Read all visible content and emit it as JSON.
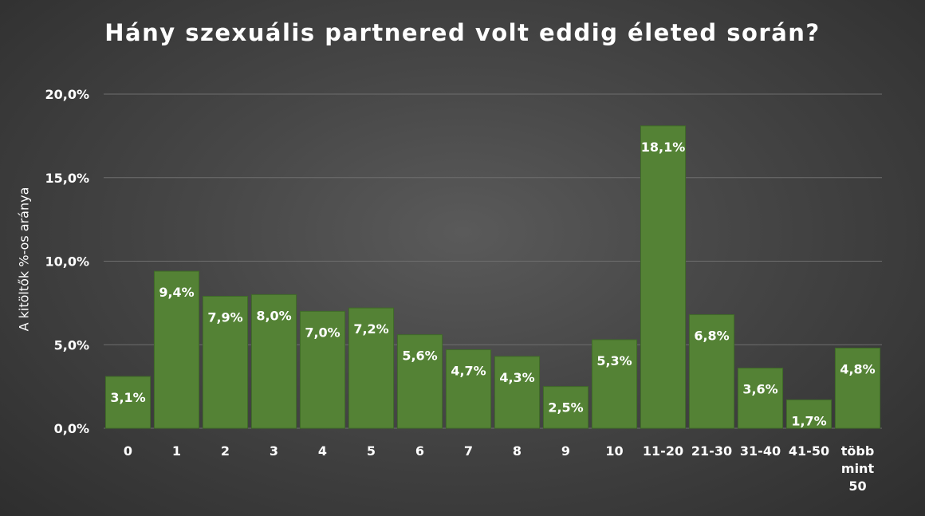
{
  "chart_data": {
    "type": "bar",
    "title": "Hány szexuális partnered volt eddig életed során?",
    "xlabel": "",
    "ylabel": "A kitöltők %-os aránya",
    "ylim": [
      0,
      20
    ],
    "yticks": [
      "0,0%",
      "5,0%",
      "10,0%",
      "15,0%",
      "20,0%"
    ],
    "ytick_values": [
      0,
      5,
      10,
      15,
      20
    ],
    "categories": [
      "0",
      "1",
      "2",
      "3",
      "4",
      "5",
      "6",
      "7",
      "8",
      "9",
      "10",
      "11-20",
      "21-30",
      "31-40",
      "41-50",
      "több mint 50"
    ],
    "values": [
      3.1,
      9.4,
      7.9,
      8.0,
      7.0,
      7.2,
      5.6,
      4.7,
      4.3,
      2.5,
      5.3,
      18.1,
      6.8,
      3.6,
      1.7,
      4.8
    ],
    "data_labels": [
      "3,1%",
      "9,4%",
      "7,9%",
      "8,0%",
      "7,0%",
      "7,2%",
      "5,6%",
      "4,7%",
      "4,3%",
      "2,5%",
      "5,3%",
      "18,1%",
      "6,8%",
      "3,6%",
      "1,7%",
      "4,8%"
    ],
    "grid": true,
    "legend": "none",
    "colors": {
      "bar": "#548235",
      "bar_edge": "#3f6a28",
      "text": "#ffffff",
      "grid": "#6e6e6e"
    }
  }
}
